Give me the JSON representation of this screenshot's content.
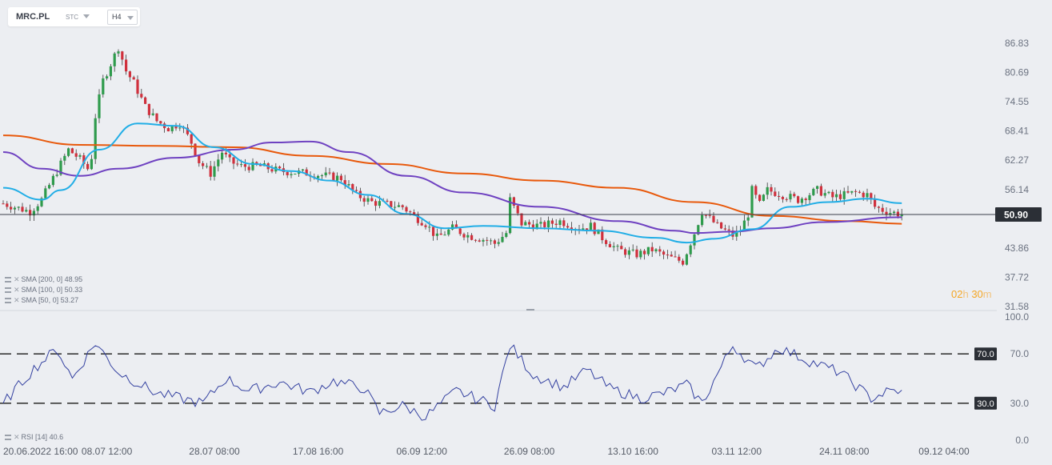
{
  "toolbar": {
    "symbol": "MRC.PL",
    "market": "STC",
    "timeframe": "H4"
  },
  "indicators": {
    "sma200": "SMA [200, 0] 48.95",
    "sma100": "SMA [100, 0] 50.33",
    "sma50": "SMA [50, 0] 53.27",
    "rsi": "RSI [14] 40.6"
  },
  "timer": {
    "h": "02",
    "h_unit": "h",
    "m": "30",
    "m_unit": "m"
  },
  "icons": [
    "settings-icon",
    "close-icon",
    "chevron-down-icon"
  ],
  "chart_data": [
    {
      "type": "candlestick",
      "series": [
        {
          "name": "SMA [200, 0] 48.95",
          "color": "#e8590c",
          "x": [
            0,
            20,
            40,
            60,
            80,
            100,
            120,
            140,
            160,
            180,
            200,
            220,
            234
          ],
          "y": [
            67.5,
            65.5,
            65.3,
            65.0,
            63.2,
            61.5,
            59.5,
            58.0,
            56.5,
            53.5,
            50.6,
            49.5,
            48.95
          ]
        },
        {
          "name": "SMA [100, 0] 50.33",
          "color": "#6f42c1",
          "x": [
            0,
            10,
            20,
            30,
            45,
            60,
            70,
            80,
            90,
            105,
            120,
            140,
            160,
            175,
            180,
            190,
            200,
            214,
            234
          ],
          "y": [
            64.0,
            60.5,
            59.0,
            60.5,
            62.8,
            64.5,
            66.0,
            66.2,
            64.0,
            59.0,
            55.5,
            52.5,
            49.5,
            47.5,
            47.0,
            47.3,
            48.0,
            49.3,
            50.33
          ]
        },
        {
          "name": "SMA [50, 0] 53.27",
          "color": "#22aee6",
          "x": [
            0,
            10,
            15,
            25,
            35,
            45,
            55,
            65,
            75,
            85,
            95,
            105,
            115,
            125,
            140,
            155,
            170,
            178,
            185,
            195,
            205,
            215,
            225,
            234
          ],
          "y": [
            56.5,
            54.0,
            56.0,
            64.5,
            70.0,
            69.5,
            65.0,
            61.5,
            60.0,
            58.0,
            55.0,
            51.0,
            48.0,
            48.5,
            48.0,
            47.5,
            46.0,
            45.0,
            45.8,
            47.8,
            52.5,
            53.5,
            54.2,
            53.27
          ]
        },
        {
          "name": "RSI [14] 40.6",
          "color": "#3340a0",
          "x": [
            0,
            8,
            14,
            18,
            24,
            30,
            40,
            52,
            58,
            64,
            72,
            80,
            86,
            94,
            98,
            104,
            110,
            118,
            128,
            132,
            138,
            146,
            152,
            158,
            166,
            172,
            178,
            182,
            190,
            196,
            202,
            210,
            218,
            226,
            230,
            234
          ],
          "y": [
            30,
            58,
            74,
            50,
            79,
            55,
            38,
            30,
            50,
            40,
            47,
            39,
            48,
            42,
            22,
            28,
            19,
            40,
            28,
            77,
            53,
            43,
            57,
            42,
            34,
            38,
            45,
            30,
            77,
            58,
            75,
            64,
            55,
            34,
            39,
            40.6
          ]
        }
      ],
      "current_price": "50.90",
      "last": 50.9,
      "x": [
        "20.06.2022 16:00",
        "08.07 12:00",
        "28.07 08:00",
        "17.08 16:00",
        "06.09 12:00",
        "26.09 08:00",
        "13.10 16:00",
        "03.11 12:00",
        "24.11 08:00",
        "09.12 04:00"
      ],
      "x_tick_bar": [
        0,
        27,
        55,
        82,
        109,
        137,
        164,
        191,
        219,
        245
      ],
      "y_price_ticks": [
        "86.83",
        "80.69",
        "74.55",
        "68.41",
        "62.27",
        "56.14",
        "43.86",
        "37.72",
        "31.58"
      ],
      "y_price_range": [
        31.58,
        86.83
      ],
      "y_rsi_ticks": [
        "100.0",
        "70.0",
        "30.0",
        "0.0"
      ],
      "y_rsi_range": [
        0,
        100
      ],
      "rsi_levels": [
        {
          "value": 70,
          "label": "70.0"
        },
        {
          "value": 30,
          "label": "30.0"
        }
      ],
      "price_path": [
        [
          0,
          53.2
        ],
        [
          7,
          51.5
        ],
        [
          10,
          54.0
        ],
        [
          12,
          57.0
        ],
        [
          15,
          61.5
        ],
        [
          17,
          64.5
        ],
        [
          20,
          62.5
        ],
        [
          22,
          60.5
        ],
        [
          23,
          63.0
        ],
        [
          24,
          71.5
        ],
        [
          26,
          79.0
        ],
        [
          28,
          82.5
        ],
        [
          30,
          86.0
        ],
        [
          32,
          81.0
        ],
        [
          34,
          78.5
        ],
        [
          37,
          73.5
        ],
        [
          40,
          70.5
        ],
        [
          43,
          69.0
        ],
        [
          46,
          70.0
        ],
        [
          49,
          66.0
        ],
        [
          51,
          62.0
        ],
        [
          54,
          59.5
        ],
        [
          57,
          64.0
        ],
        [
          59,
          62.0
        ],
        [
          62,
          61.0
        ],
        [
          67,
          61.0
        ],
        [
          72,
          60.0
        ],
        [
          80,
          59.5
        ],
        [
          88,
          58.5
        ],
        [
          92,
          55.0
        ],
        [
          96,
          53.5
        ],
        [
          104,
          52.5
        ],
        [
          108,
          50.0
        ],
        [
          110,
          49.0
        ],
        [
          113,
          46.0
        ],
        [
          117,
          48.0
        ],
        [
          121,
          46.5
        ],
        [
          126,
          45.5
        ],
        [
          128,
          44.8
        ],
        [
          131,
          47.0
        ],
        [
          132,
          54.0
        ],
        [
          135,
          49.0
        ],
        [
          140,
          48.5
        ],
        [
          145,
          49.5
        ],
        [
          150,
          48.0
        ],
        [
          153,
          48.5
        ],
        [
          156,
          46.0
        ],
        [
          160,
          43.5
        ],
        [
          165,
          42.5
        ],
        [
          169,
          43.5
        ],
        [
          173,
          42.0
        ],
        [
          177,
          41.0
        ],
        [
          180,
          47.0
        ],
        [
          182,
          51.5
        ],
        [
          186,
          48.5
        ],
        [
          190,
          46.5
        ],
        [
          192,
          47.5
        ],
        [
          194,
          51.0
        ],
        [
          195,
          56.0
        ],
        [
          197,
          53.0
        ],
        [
          199,
          56.0
        ],
        [
          203,
          55.0
        ],
        [
          207,
          54.0
        ],
        [
          212,
          56.0
        ],
        [
          216,
          54.5
        ],
        [
          222,
          55.5
        ],
        [
          225,
          55.0
        ],
        [
          227,
          52.5
        ],
        [
          230,
          51.5
        ],
        [
          234,
          51.0
        ]
      ]
    }
  ]
}
